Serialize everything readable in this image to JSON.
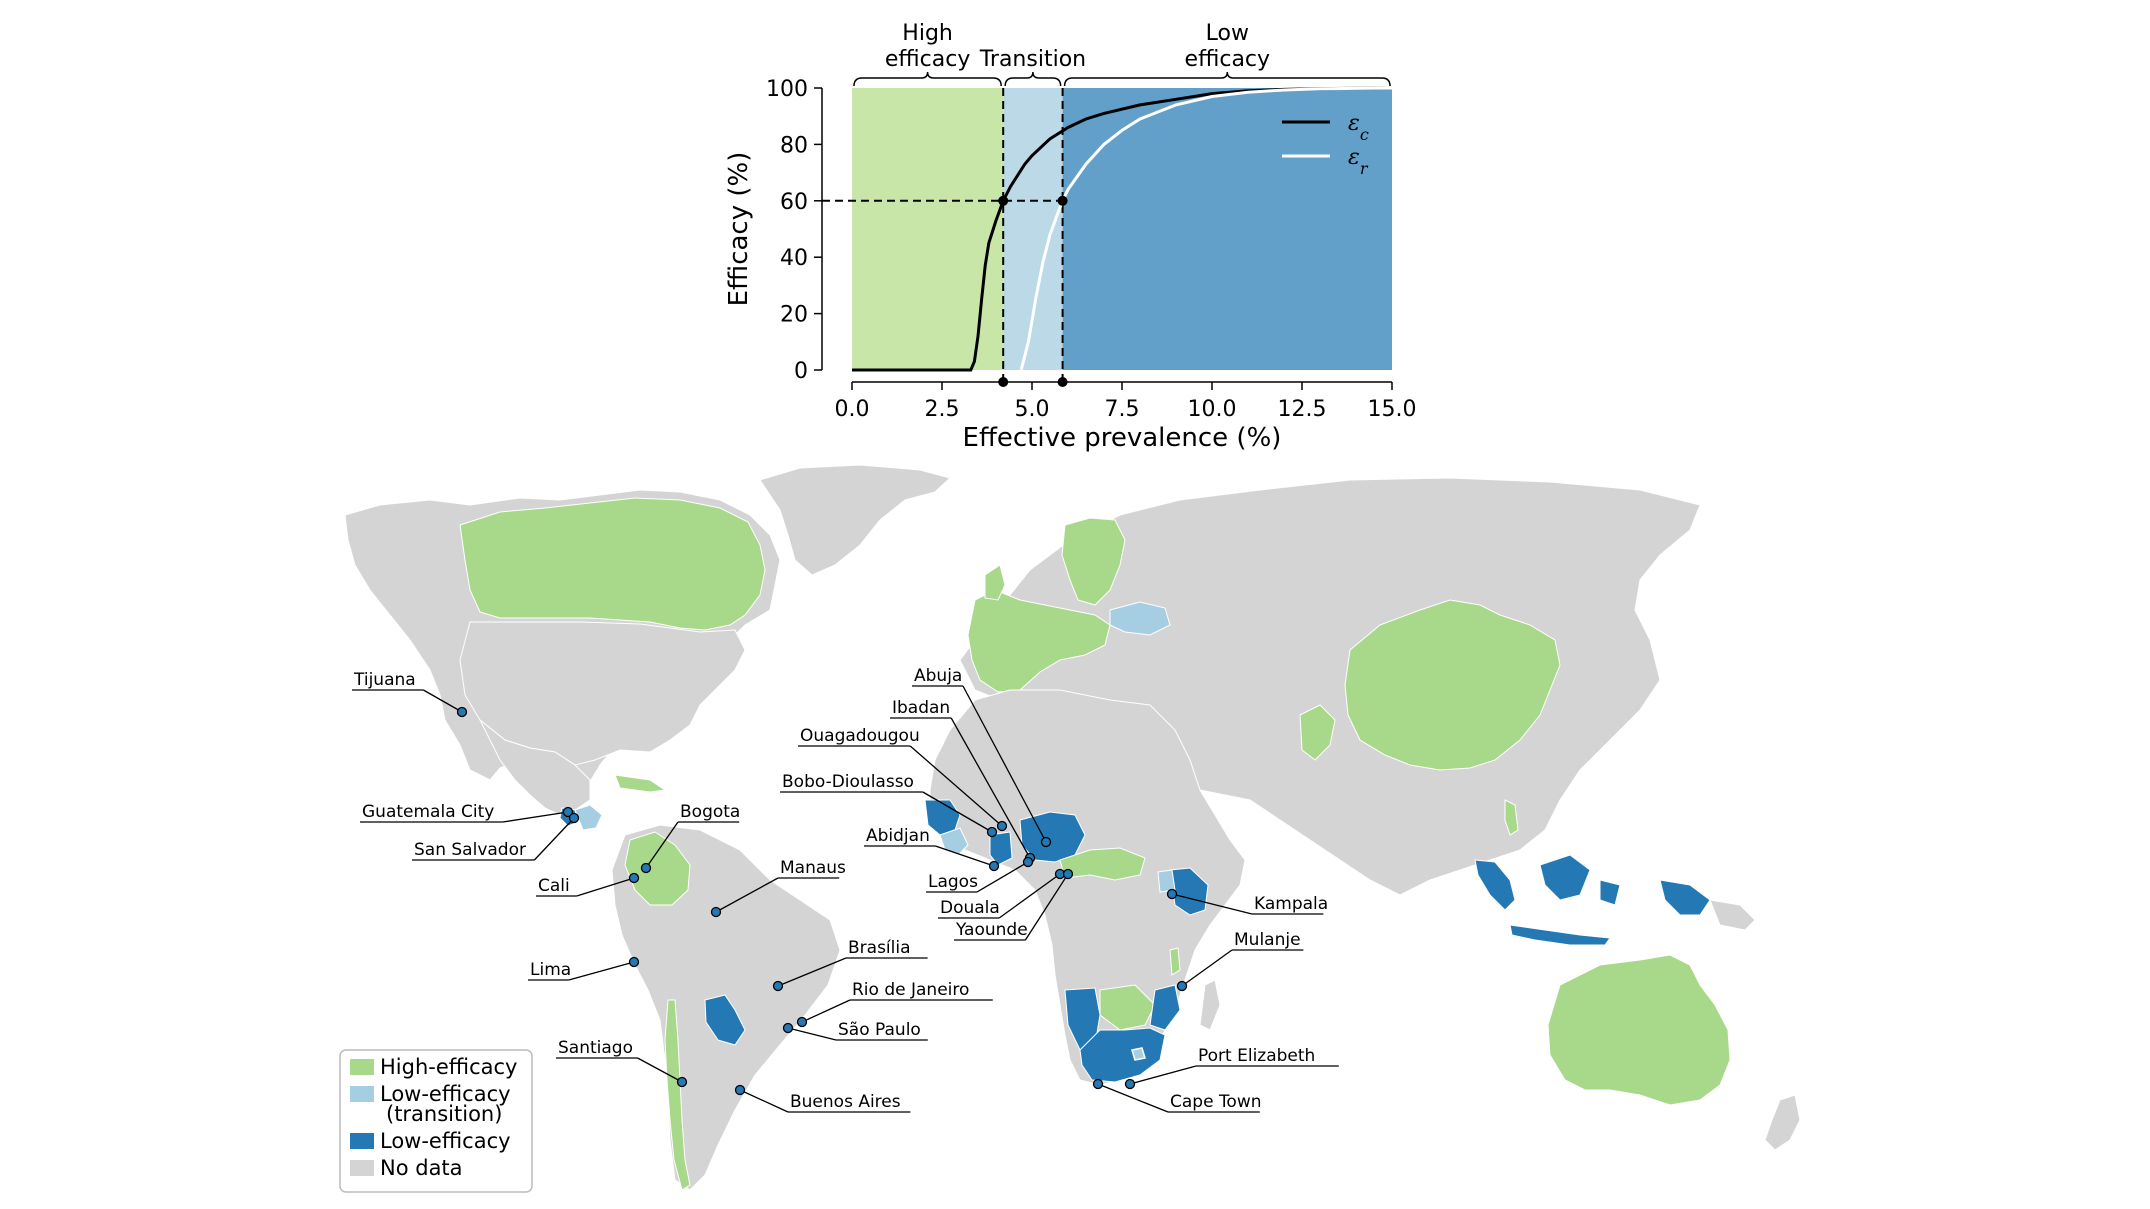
{
  "chart_data": [
    {
      "type": "line",
      "xlabel": "Effective prevalence (%)",
      "ylabel": "Efficacy (%)",
      "xlim": [
        0,
        15
      ],
      "ylim": [
        0,
        100
      ],
      "x_ticks": [
        "0.0",
        "2.5",
        "5.0",
        "7.5",
        "10.0",
        "12.5",
        "15.0"
      ],
      "y_ticks": [
        "0",
        "20",
        "40",
        "60",
        "80",
        "100"
      ],
      "grid": false,
      "legend_position": "top-right",
      "regions": [
        {
          "label": [
            "High",
            "efficacy"
          ],
          "x_range": [
            0,
            4.2
          ],
          "color": "#c8e6a8"
        },
        {
          "label": [
            "Transition"
          ],
          "x_range": [
            4.2,
            5.85
          ],
          "color": "#bcd9e8"
        },
        {
          "label": [
            "Low",
            "efficacy"
          ],
          "x_range": [
            5.85,
            15
          ],
          "color": "#62a0ca"
        }
      ],
      "threshold": {
        "y": 60,
        "x": [
          4.2,
          5.85
        ]
      },
      "series": [
        {
          "name": "ε_c",
          "color": "#000000",
          "x": [
            0,
            3.3,
            3.4,
            3.5,
            3.6,
            3.7,
            3.8,
            4.0,
            4.2,
            4.4,
            4.6,
            4.8,
            5.0,
            5.5,
            6.0,
            6.5,
            7.0,
            8.0,
            9.0,
            10.0,
            11.0,
            12.0,
            13.0,
            15.0
          ],
          "y": [
            0,
            0,
            3,
            12,
            25,
            37,
            45,
            53,
            60,
            65,
            69,
            73,
            76,
            82,
            86,
            89,
            91,
            94,
            96,
            98,
            99,
            99.5,
            99.8,
            100
          ]
        },
        {
          "name": "ε_r",
          "color": "#ffffff",
          "x": [
            4.7,
            4.9,
            5.1,
            5.3,
            5.5,
            5.7,
            5.85,
            6.0,
            6.5,
            7.0,
            7.5,
            8.0,
            9.0,
            10.0,
            11.0,
            12.0,
            13.0,
            15.0
          ],
          "y": [
            0,
            10,
            25,
            38,
            48,
            55,
            60,
            64,
            73,
            80,
            85,
            89,
            94,
            97,
            98.5,
            99.3,
            99.7,
            100
          ]
        }
      ]
    },
    {
      "type": "map",
      "legend": [
        {
          "label": [
            "High-efficacy"
          ],
          "color": "#a8d88a"
        },
        {
          "label": [
            "Low-efficacy",
            "(transition)"
          ],
          "color": "#a6cee3"
        },
        {
          "label": [
            "Low-efficacy"
          ],
          "color": "#2479b5"
        },
        {
          "label": [
            "No data"
          ],
          "color": "#d4d4d4"
        }
      ],
      "cities": [
        "Tijuana",
        "Guatemala City",
        "San Salvador",
        "Bogota",
        "Cali",
        "Manaus",
        "Lima",
        "Brasília",
        "Rio de Janeiro",
        "São Paulo",
        "Santiago",
        "Buenos Aires",
        "Abuja",
        "Ibadan",
        "Ouagadougou",
        "Bobo-Dioulasso",
        "Abidjan",
        "Lagos",
        "Douala",
        "Yaounde",
        "Kampala",
        "Mulanje",
        "Port Elizabeth",
        "Cape Town"
      ]
    }
  ]
}
